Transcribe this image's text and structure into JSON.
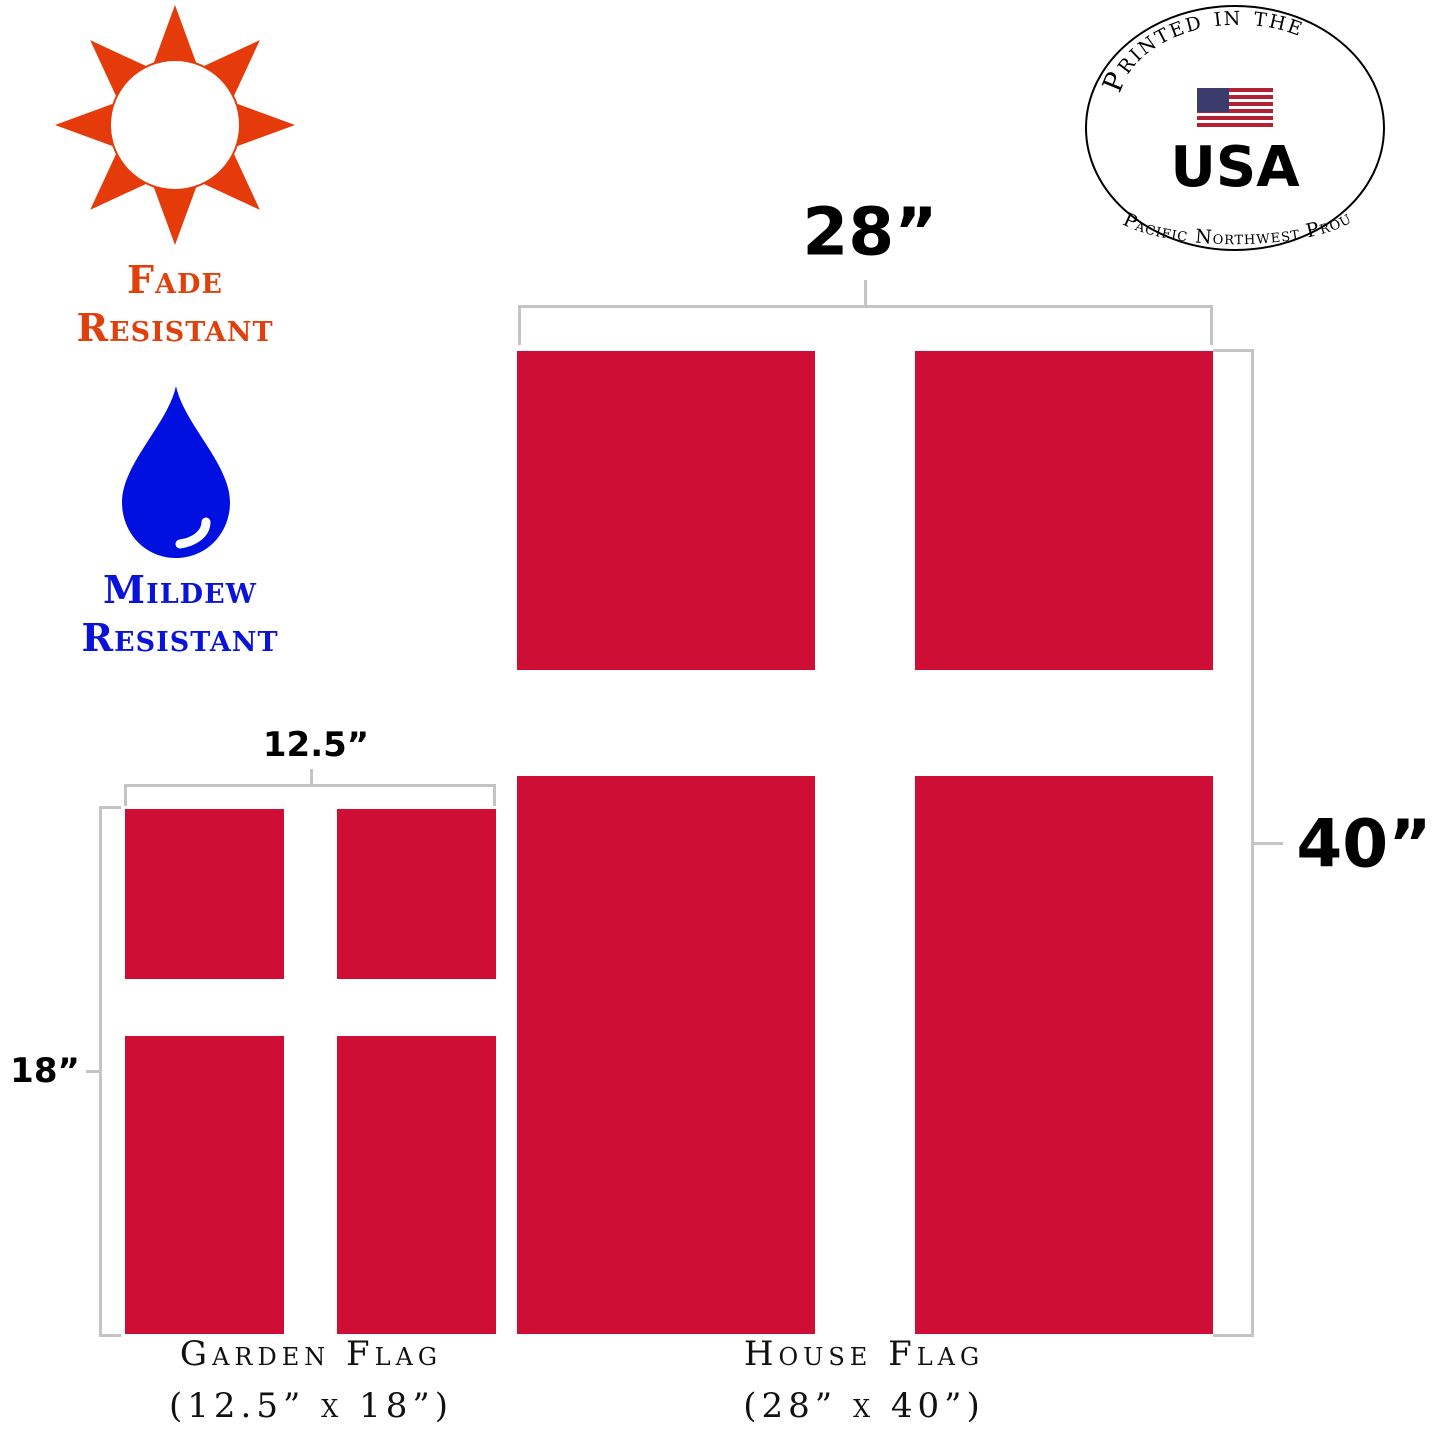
{
  "badges": {
    "fade": {
      "line1": "Fade",
      "line2": "Resistant",
      "color": "#e0400c",
      "icon": "sun-icon"
    },
    "mildew": {
      "line1": "Mildew",
      "line2": "Resistant",
      "color": "#0a14d8",
      "icon": "water-drop-icon"
    }
  },
  "seal": {
    "top_text": "Printed in the",
    "main_text": "USA",
    "bottom_text": "Pacific Northwest Proud",
    "icon": "us-flag-icon"
  },
  "house_flag": {
    "width_label": "28”",
    "height_label": "40”",
    "caption": "House Flag",
    "size": "(28” x 40”)"
  },
  "garden_flag": {
    "width_label": "12.5”",
    "height_label": "18”",
    "caption": "Garden Flag",
    "size": "(12.5” x 18”)"
  },
  "colors": {
    "flag_red": "#ce0e34",
    "cross": "#ffffff",
    "bracket": "#c4c4c4"
  }
}
